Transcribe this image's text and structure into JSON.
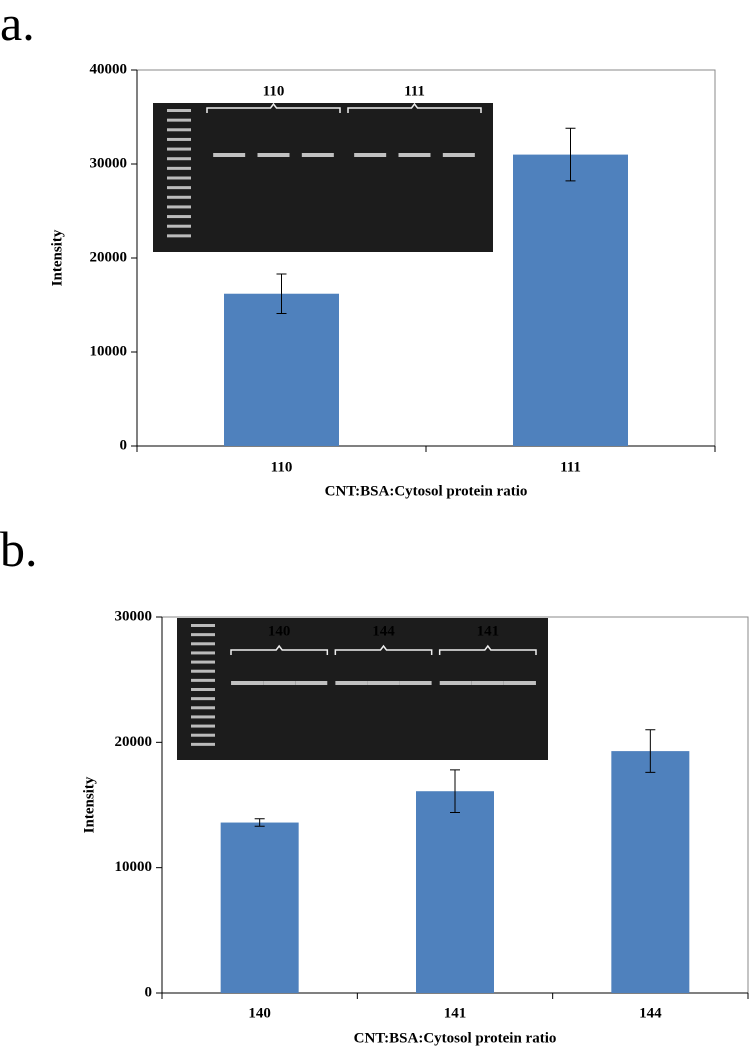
{
  "chart_data": [
    {
      "type": "bar",
      "panel_label": "a.",
      "categories": [
        "110",
        "111"
      ],
      "values": [
        16200,
        31000
      ],
      "errors": [
        2100,
        2800
      ],
      "color": "#4f81bd",
      "ylim": [
        0,
        40000
      ],
      "yticks": [
        0,
        10000,
        20000,
        30000,
        40000
      ],
      "xlabel": "CNT:BSA:Cytosol protein ratio",
      "ylabel": "Intensity",
      "inset_labels": [
        "110",
        "111"
      ]
    },
    {
      "type": "bar",
      "panel_label": "b.",
      "categories": [
        "140",
        "141",
        "144"
      ],
      "values": [
        13600,
        16100,
        19300
      ],
      "errors": [
        300,
        1700,
        1700
      ],
      "color": "#4f81bd",
      "ylim": [
        0,
        30000
      ],
      "yticks": [
        0,
        10000,
        20000,
        30000
      ],
      "xlabel": "CNT:BSA:Cytosol protein ratio",
      "ylabel": "Intensity",
      "inset_labels": [
        "140",
        "144",
        "141"
      ]
    }
  ]
}
